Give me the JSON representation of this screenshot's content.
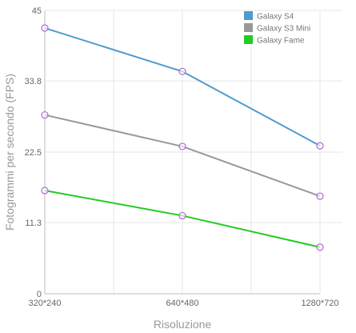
{
  "chart_data": {
    "type": "line",
    "title": "",
    "xlabel": "Risoluzione",
    "ylabel": "Fotogrammi per secondo (FPS)",
    "categories": [
      "320*240",
      "640*480",
      "1280*720"
    ],
    "y_ticks": [
      "0",
      "11.3",
      "22.5",
      "33.8",
      "45"
    ],
    "ylim": [
      0,
      45
    ],
    "grid": true,
    "legend_position": "top-right",
    "series": [
      {
        "name": "Galaxy S4",
        "color": "#4f9bd0",
        "values": [
          42.2,
          35.3,
          23.5
        ]
      },
      {
        "name": "Galaxy S3 Mini",
        "color": "#999999",
        "values": [
          28.4,
          23.4,
          15.5
        ]
      },
      {
        "name": "Galaxy Fame",
        "color": "#22cc22",
        "values": [
          16.4,
          12.4,
          7.4
        ]
      }
    ],
    "marker_color": "#b266d6"
  }
}
